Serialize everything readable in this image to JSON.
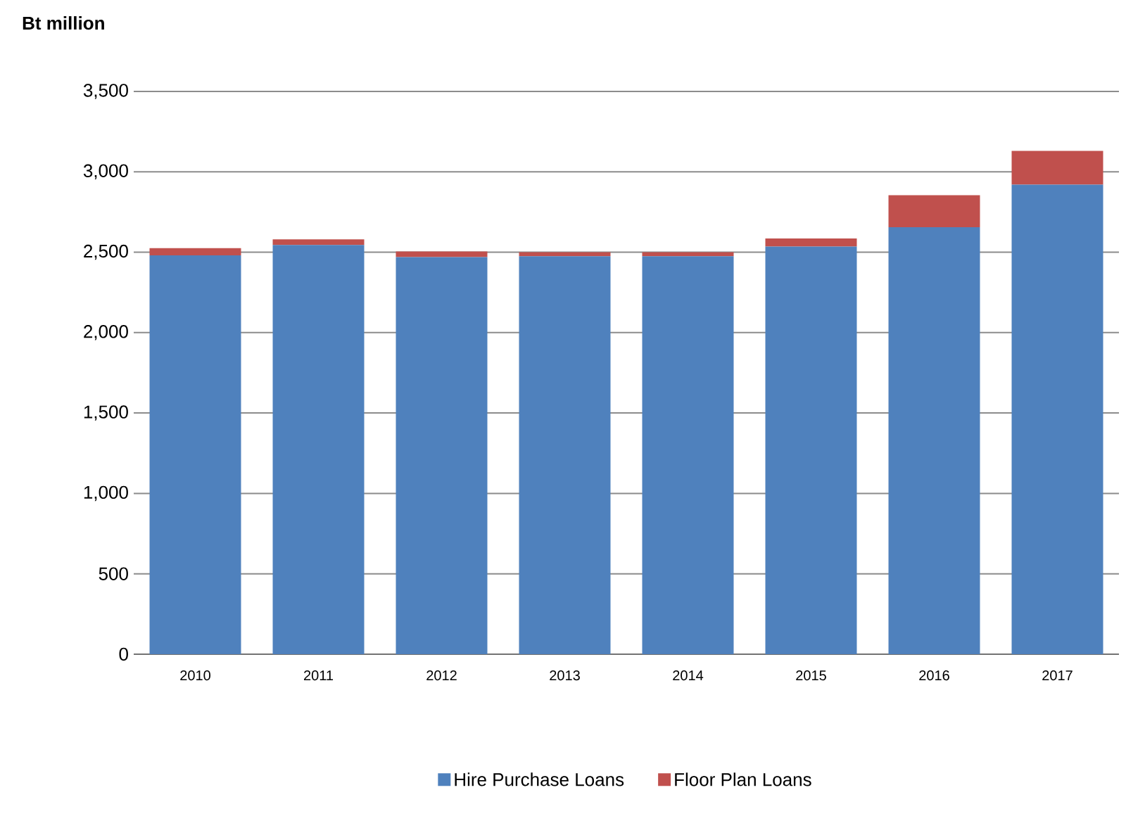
{
  "chart_data": {
    "type": "bar",
    "stacked": true,
    "ylabel": "Bt million",
    "categories": [
      "2010",
      "2011",
      "2012",
      "2013",
      "2014",
      "2015",
      "2016",
      "2017"
    ],
    "series": [
      {
        "name": "Hire Purchase Loans",
        "color": "#4f81bd",
        "values": [
          2480,
          2545,
          2470,
          2475,
          2475,
          2535,
          2655,
          2920
        ]
      },
      {
        "name": "Floor Plan Loans",
        "color": "#c0504d",
        "values": [
          45,
          35,
          35,
          25,
          25,
          50,
          200,
          210
        ]
      }
    ],
    "ylim": [
      0,
      3500
    ],
    "yticks": [
      0,
      {
        "value": 500,
        "label": "500"
      },
      {
        "value": 1000,
        "label": "1,000"
      },
      {
        "value": 1500,
        "label": "1,500"
      },
      {
        "value": 2000,
        "label": "2,000"
      },
      {
        "value": 2500,
        "label": "2,500"
      },
      {
        "value": 3000,
        "label": "3,000"
      },
      {
        "value": 3500,
        "label": "3,500"
      }
    ],
    "grid": "y",
    "legend": "bottom"
  }
}
